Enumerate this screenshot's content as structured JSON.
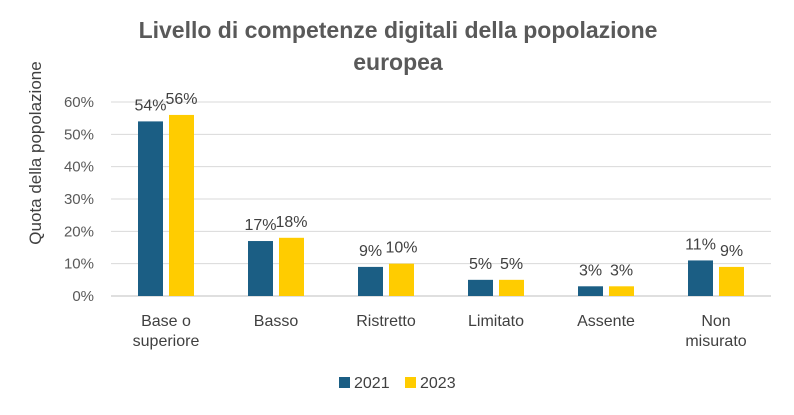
{
  "chart_data": {
    "type": "bar",
    "title_lines": [
      "Livello di competenze digitali della popolazione",
      "europea"
    ],
    "ylabel": "Quota della popolazione",
    "xlabel": "",
    "ylim": [
      0,
      0.6
    ],
    "yticks": [
      "0%",
      "10%",
      "20%",
      "30%",
      "40%",
      "50%",
      "60%"
    ],
    "categories": [
      [
        "Base o",
        "superiore"
      ],
      [
        "Basso"
      ],
      [
        "Ristretto"
      ],
      [
        "Limitato"
      ],
      [
        "Assente"
      ],
      [
        "Non",
        "misurato"
      ]
    ],
    "series": [
      {
        "name": "2021",
        "color": "#1b5e84",
        "values": [
          0.54,
          0.17,
          0.09,
          0.05,
          0.03,
          0.11
        ],
        "labels": [
          "54%",
          "17%",
          "9%",
          "5%",
          "3%",
          "11%"
        ]
      },
      {
        "name": "2023",
        "color": "#ffcc00",
        "values": [
          0.56,
          0.18,
          0.1,
          0.05,
          0.03,
          0.09
        ],
        "labels": [
          "56%",
          "18%",
          "10%",
          "5%",
          "3%",
          "9%"
        ]
      }
    ],
    "grid": true,
    "legend_position": "bottom"
  }
}
